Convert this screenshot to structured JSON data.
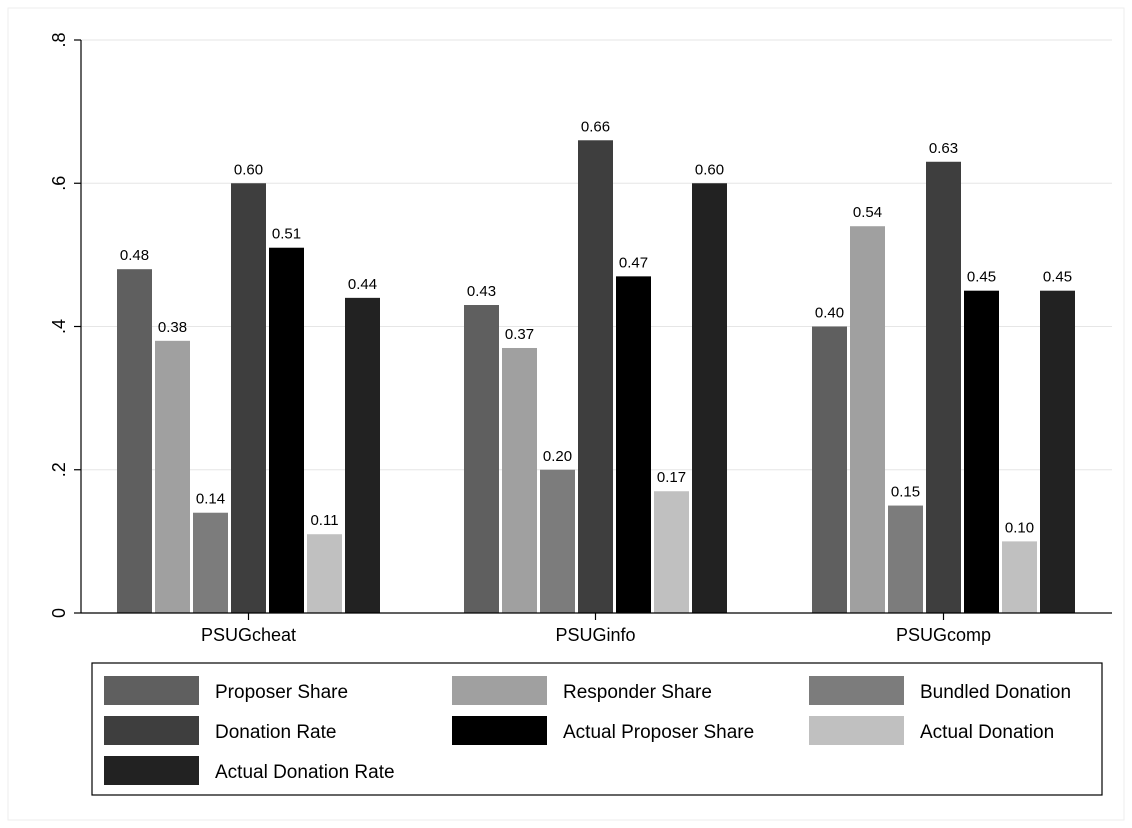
{
  "chart_data": {
    "type": "bar",
    "categories": [
      "PSUGcheat",
      "PSUGinfo",
      "PSUGcomp"
    ],
    "series": [
      {
        "name": "Proposer Share",
        "color": "#5f5f5f",
        "values": [
          0.48,
          0.43,
          0.4
        ],
        "labels": [
          "0.48",
          "0.43",
          "0.40"
        ]
      },
      {
        "name": "Responder Share",
        "color": "#a0a0a0",
        "values": [
          0.38,
          0.37,
          0.54
        ],
        "labels": [
          "0.38",
          "0.37",
          "0.54"
        ]
      },
      {
        "name": "Bundled Donation",
        "color": "#7c7c7c",
        "values": [
          0.14,
          0.2,
          0.15
        ],
        "labels": [
          "0.14",
          "0.20",
          "0.15"
        ]
      },
      {
        "name": "Donation Rate",
        "color": "#3e3e3e",
        "values": [
          0.6,
          0.66,
          0.63
        ],
        "labels": [
          "0.60",
          "0.66",
          "0.63"
        ]
      },
      {
        "name": "Actual Proposer Share",
        "color": "#000000",
        "values": [
          0.51,
          0.47,
          0.45
        ],
        "labels": [
          "0.51",
          "0.47",
          "0.45"
        ]
      },
      {
        "name": "Actual Donation",
        "color": "#c0c0c0",
        "values": [
          0.11,
          0.17,
          0.1
        ],
        "labels": [
          "0.11",
          "0.17",
          "0.10"
        ]
      },
      {
        "name": "Actual Donation Rate",
        "color": "#222222",
        "values": [
          0.44,
          0.6,
          0.45
        ],
        "labels": [
          "0.44",
          "0.60",
          "0.45"
        ]
      }
    ],
    "ylim": [
      0,
      0.8
    ],
    "yticks": [
      0,
      0.2,
      0.4,
      0.6,
      0.8
    ],
    "ytick_labels": [
      "0",
      ".2",
      ".4",
      ".6",
      ".8"
    ],
    "grid": true,
    "legend_position": "bottom",
    "title": "",
    "xlabel": "",
    "ylabel": ""
  }
}
